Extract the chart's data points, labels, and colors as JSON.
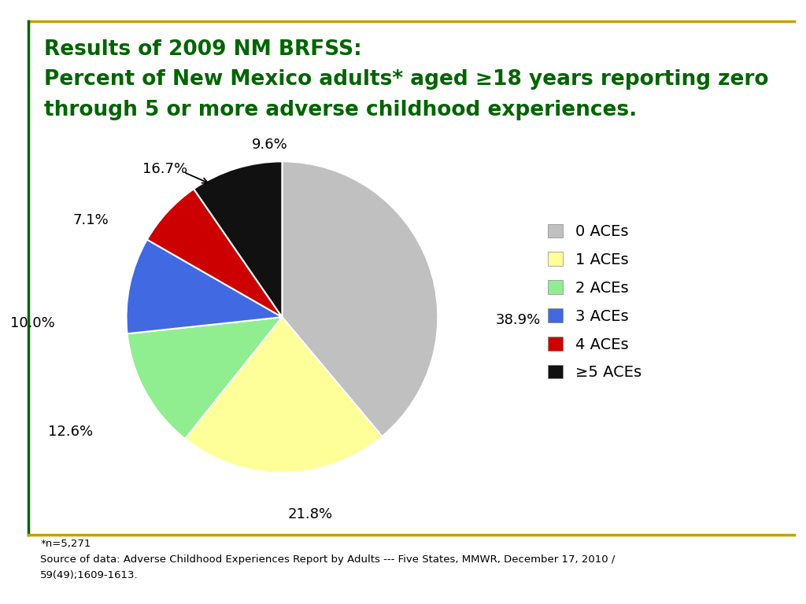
{
  "title_line1": "Results of 2009 NM BRFSS:",
  "title_line2": "Percent of New Mexico adults* aged ≥18 years reporting zero",
  "title_line3": "through 5 or more adverse childhood experiences.",
  "title_color": "#006400",
  "values": [
    38.9,
    21.8,
    12.6,
    10.0,
    7.1,
    9.6
  ],
  "labels": [
    "0 ACEs",
    "1 ACEs",
    "2 ACEs",
    "3 ACEs",
    "4 ACEs",
    "≥5 ACEs"
  ],
  "pct_labels": [
    "38.9%",
    "21.8%",
    "12.6%",
    "10.0%",
    "7.1%",
    "9.6%"
  ],
  "colors": [
    "#c0c0c0",
    "#ffff99",
    "#90ee90",
    "#4169e1",
    "#cc0000",
    "#111111"
  ],
  "border_color": "#c8a000",
  "footnote_line1": "*n=5,271",
  "footnote_line2": "Source of data: Adverse Childhood Experiences Report by Adults --- Five States, MMWR, December 17, 2010 /",
  "footnote_line3": "59(49);1609-1613.",
  "background_color": "#ffffff"
}
